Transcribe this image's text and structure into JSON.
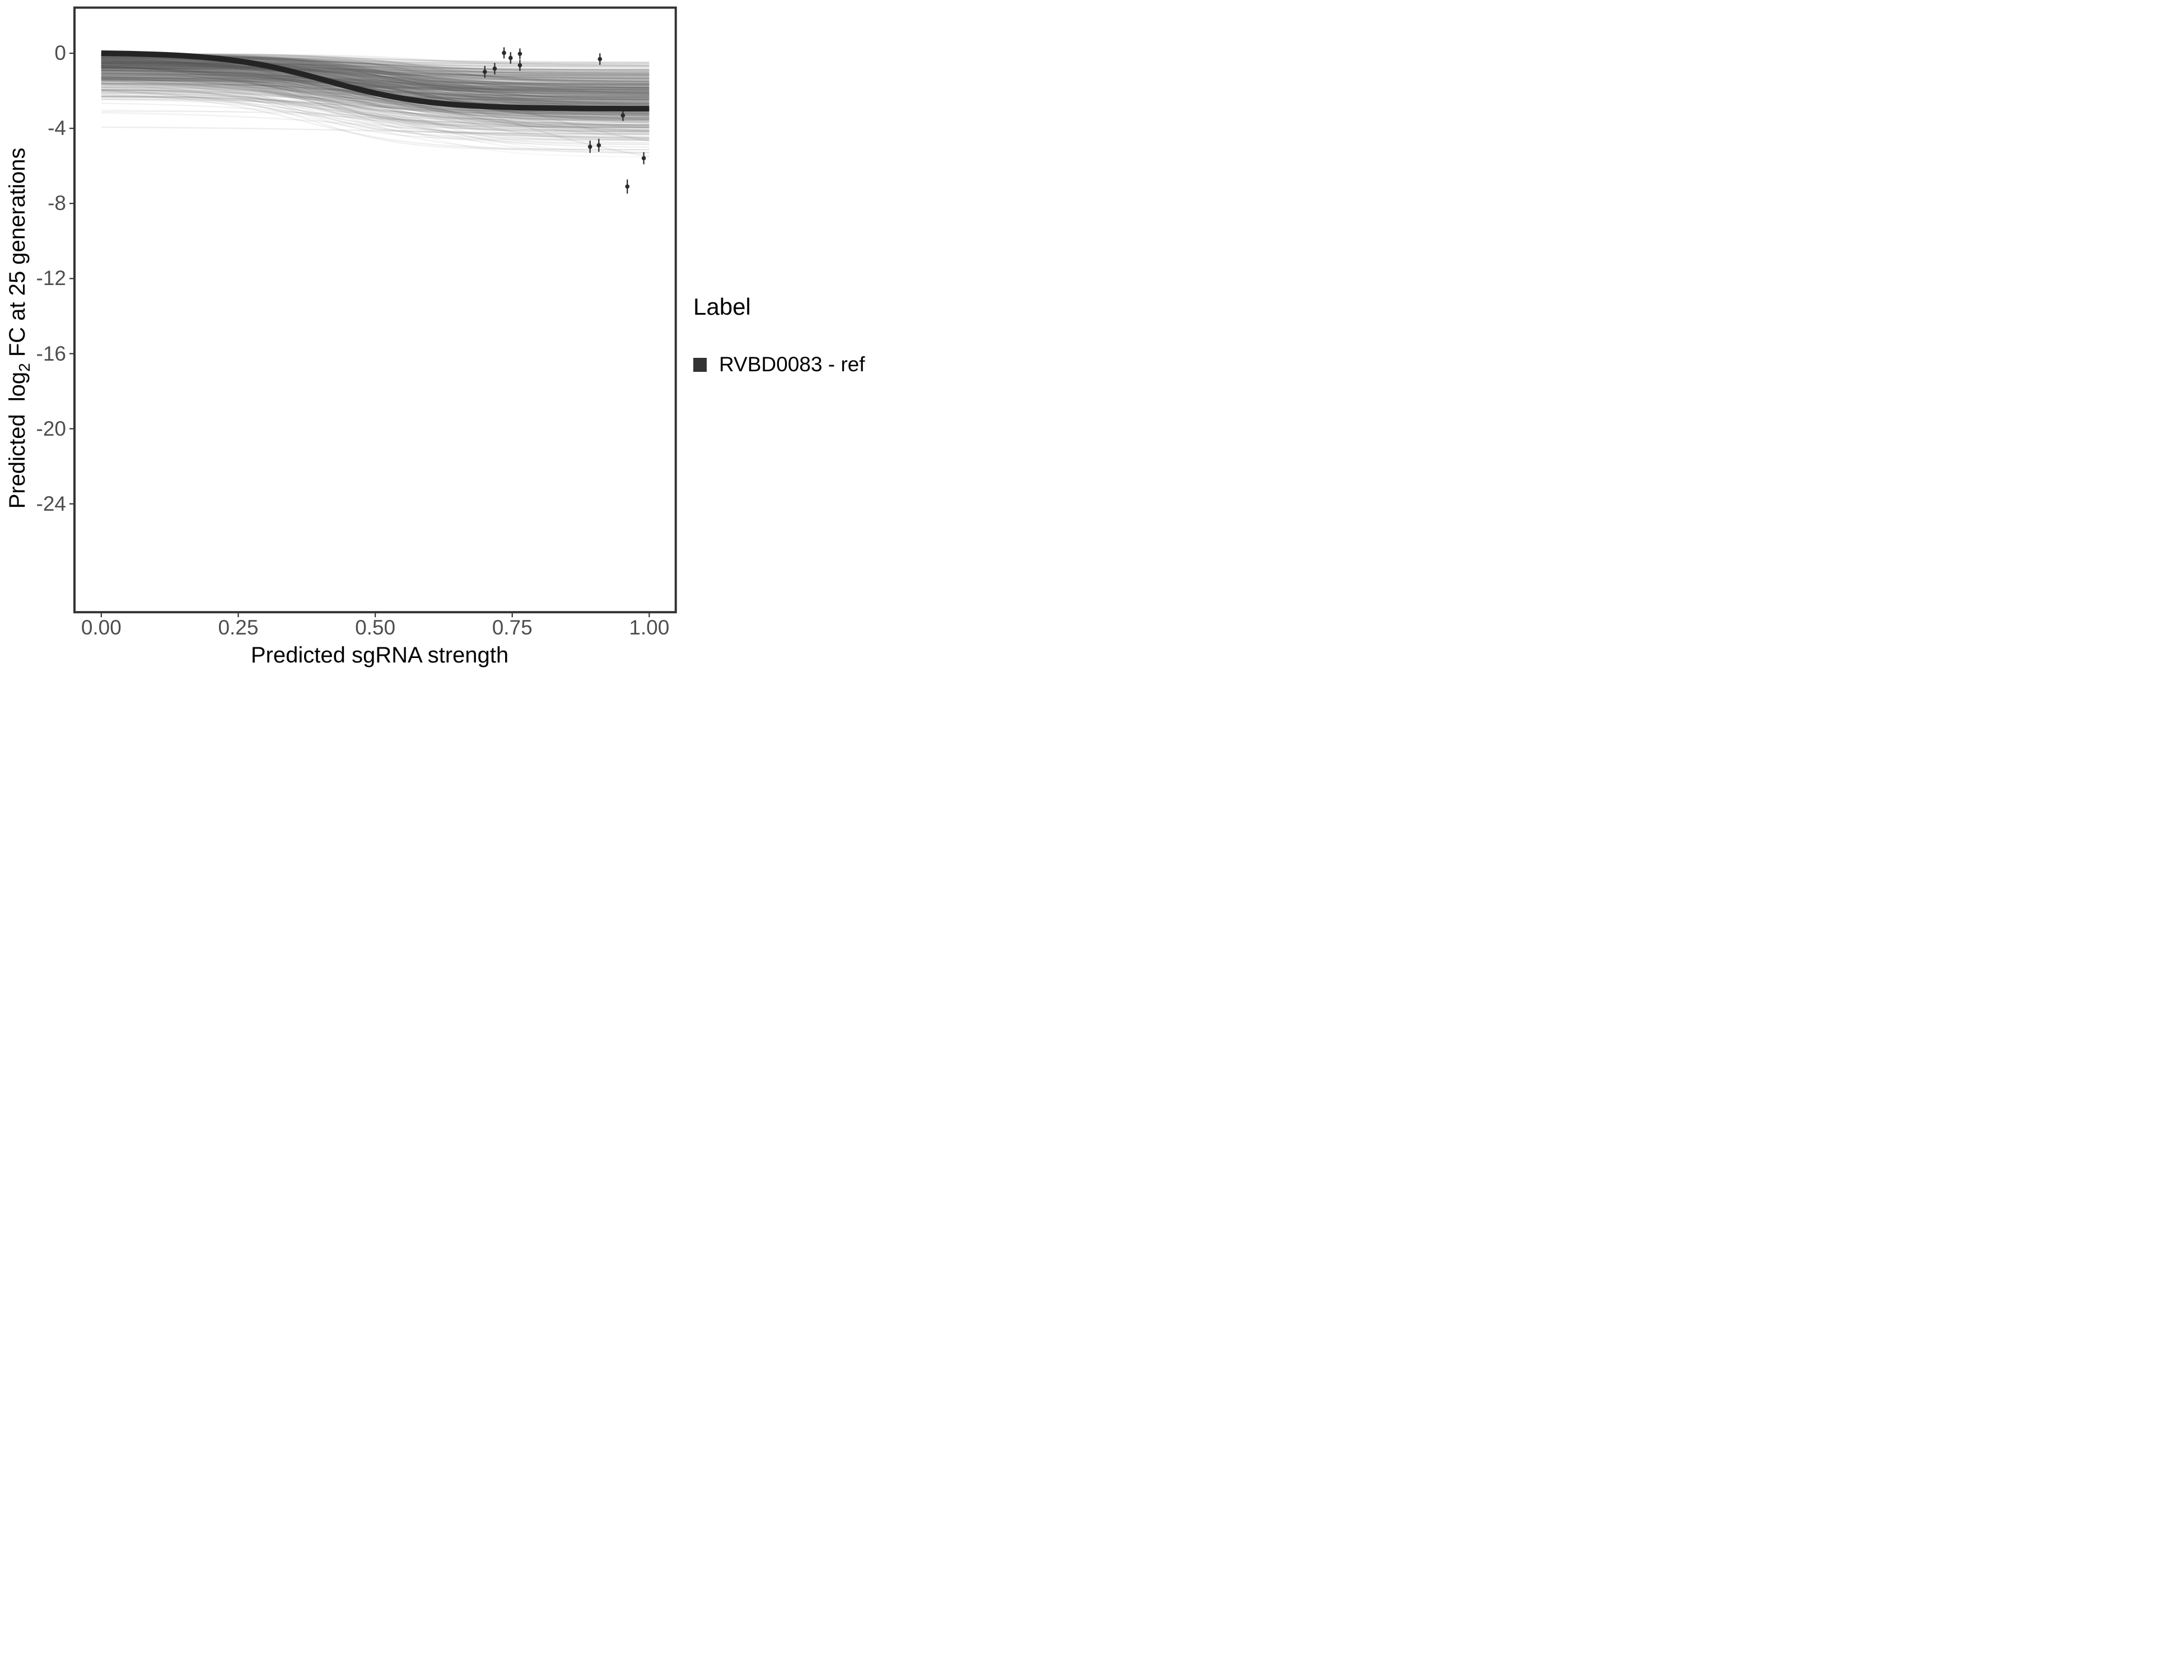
{
  "chart_data": {
    "type": "line",
    "title": "",
    "xlabel": "Predicted sgRNA strength",
    "ylabel": "Predicted  log2 FC at 25 generations",
    "ylabel_parts": {
      "prefix": "Predicted  log",
      "sub": "2",
      "suffix": " FC at 25 generations"
    },
    "xlim": [
      -0.0489,
      1.0484
    ],
    "ylim": [
      -29.77,
      2.43
    ],
    "grid": false,
    "legend_position": "right",
    "x_ticks": {
      "values": [
        0,
        0.25,
        0.5,
        0.75,
        1.0
      ],
      "labels": [
        "0.00",
        "0.25",
        "0.50",
        "0.75",
        "1.00"
      ]
    },
    "y_ticks": {
      "values": [
        0,
        -4,
        -8,
        -12,
        -16,
        -20,
        -24
      ],
      "labels": [
        "0",
        "-4",
        "-8",
        "-12",
        "-16",
        "-20",
        "-24"
      ]
    },
    "main_curve": {
      "label": "RVBD0083 - ref",
      "shape": "sigmoid",
      "offset": 0.04,
      "depth": 3.0,
      "k": 10.7,
      "x0": 0.411,
      "x_range": [
        0,
        1
      ],
      "color": "#242424",
      "width": 10
    },
    "points": [
      {
        "x": 0.7,
        "y": -0.99,
        "err": 0.29
      },
      {
        "x": 0.718,
        "y": -0.82,
        "err": 0.28
      },
      {
        "x": 0.735,
        "y": 0.02,
        "err": 0.27
      },
      {
        "x": 0.747,
        "y": -0.25,
        "err": 0.28
      },
      {
        "x": 0.764,
        "y": -0.03,
        "err": 0.26
      },
      {
        "x": 0.764,
        "y": -0.64,
        "err": 0.27
      },
      {
        "x": 0.892,
        "y": -4.98,
        "err": 0.3
      },
      {
        "x": 0.908,
        "y": -4.9,
        "err": 0.32
      },
      {
        "x": 0.91,
        "y": -0.31,
        "err": 0.28
      },
      {
        "x": 0.952,
        "y": -3.31,
        "err": 0.27
      },
      {
        "x": 0.96,
        "y": -7.1,
        "err": 0.35
      },
      {
        "x": 0.99,
        "y": -5.59,
        "err": 0.3
      }
    ],
    "point_style": {
      "radius": 3.8,
      "color": "#2b2b2b",
      "bar_width": 2.2
    },
    "ensemble": {
      "description": "posterior draw curves, translucent gray sigmoids from x=0 to x=1",
      "seed": 11,
      "count": 620,
      "x_range": [
        0,
        1
      ],
      "stroke": "#5c5c5c",
      "width": 2.2,
      "opacity_min": 0.045,
      "opacity_max": 0.11,
      "start_sigma": 0.95,
      "start_max": 3.1,
      "drop_base": 0.35,
      "drop_span": 2.75,
      "drop_pow": 0.95,
      "k_min": 6,
      "k_max": 14,
      "mid_min": 0.33,
      "mid_max": 0.62,
      "outliers": [
        {
          "s": -0.5,
          "f": -6.3,
          "m": 0.72,
          "k": 6.5,
          "o": 0.1
        },
        {
          "s": -0.8,
          "f": -5.5,
          "m": 0.78,
          "k": 7.0,
          "o": 0.1
        },
        {
          "s": -1.1,
          "f": -4.9,
          "m": 0.6,
          "k": 5.5,
          "o": 0.09
        },
        {
          "s": -3.9,
          "f": -4.35,
          "m": 0.5,
          "k": 5.0,
          "o": 0.1
        },
        {
          "s": -3.1,
          "f": -4.6,
          "m": 0.5,
          "k": 6.0,
          "o": 0.08
        },
        {
          "s": -2.6,
          "f": -4.2,
          "m": 0.45,
          "k": 7.0,
          "o": 0.08
        }
      ]
    },
    "legend": {
      "title": "Label",
      "items": [
        {
          "label": "RVBD0083 - ref",
          "swatch": "#333333"
        }
      ]
    },
    "colors": {
      "axis_text": "#4d4d4d",
      "axis_title": "#000000",
      "panel_border": "#333333",
      "tick_mark": "#333333",
      "background": "#ffffff"
    }
  }
}
